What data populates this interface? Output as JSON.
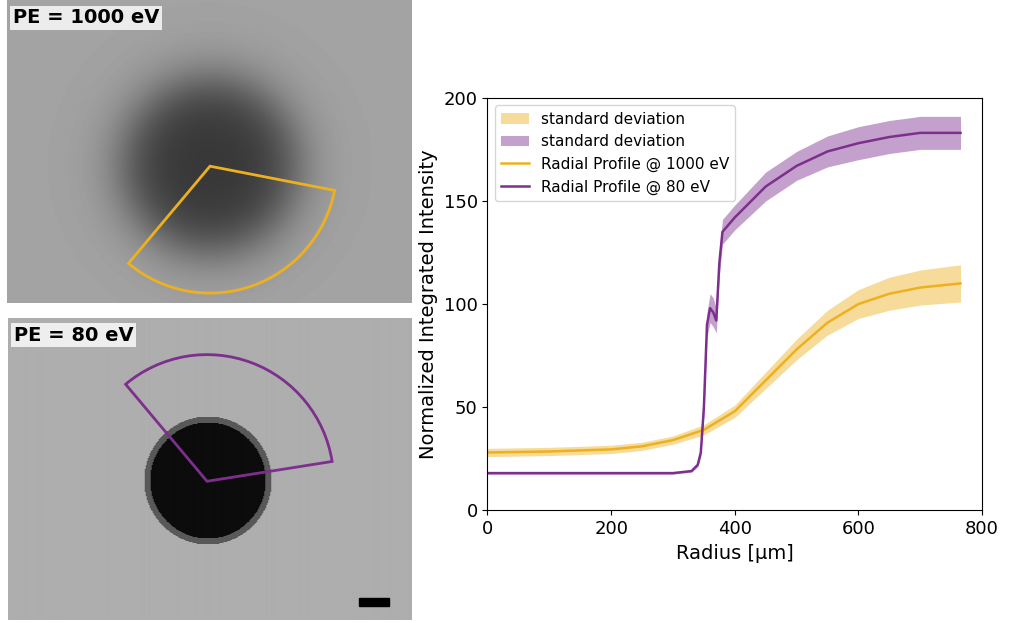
{
  "images": [
    {
      "label": "PE = 1000 eV"
    },
    {
      "label": "PE = 80 eV"
    }
  ],
  "chart_data": {
    "type": "line",
    "x_label": "Radius [µm]",
    "y_label": "Normalized Integrated Intensity",
    "xlim": [
      0,
      800
    ],
    "xticks": [
      0,
      200,
      400,
      600,
      800
    ],
    "ylim": [
      0,
      200
    ],
    "yticks": [
      0,
      50,
      100,
      150,
      200
    ],
    "legend": "upper left",
    "series": [
      {
        "name": "Radial Profile @ 1000 eV",
        "band_name": "standard deviation",
        "color": "#EDB120",
        "x": [
          0,
          100,
          200,
          250,
          300,
          350,
          400,
          450,
          500,
          550,
          600,
          650,
          700,
          765
        ],
        "values": [
          28,
          28.5,
          29.5,
          31,
          34,
          39,
          48,
          63,
          78,
          91,
          100,
          105,
          108,
          110
        ],
        "std": [
          2,
          2,
          2,
          2,
          2,
          2.5,
          3,
          4,
          5,
          6,
          7,
          8,
          8.5,
          9
        ]
      },
      {
        "name": "Radial Profile @ 80 eV",
        "band_name": "standard deviation",
        "color": "#7E2F8E",
        "x": [
          0,
          300,
          330,
          340,
          345,
          350,
          355,
          360,
          365,
          370,
          375,
          380,
          400,
          450,
          500,
          550,
          600,
          650,
          700,
          765
        ],
        "values": [
          18,
          18,
          19,
          22,
          28,
          50,
          90,
          98,
          96,
          92,
          120,
          135,
          142,
          157,
          167,
          174,
          178,
          181,
          183,
          183
        ],
        "std": [
          0.5,
          0.5,
          0.5,
          1,
          2,
          4,
          6,
          7,
          7,
          6,
          6,
          6,
          6,
          7,
          7,
          7.5,
          8,
          8,
          8,
          8
        ]
      }
    ]
  }
}
